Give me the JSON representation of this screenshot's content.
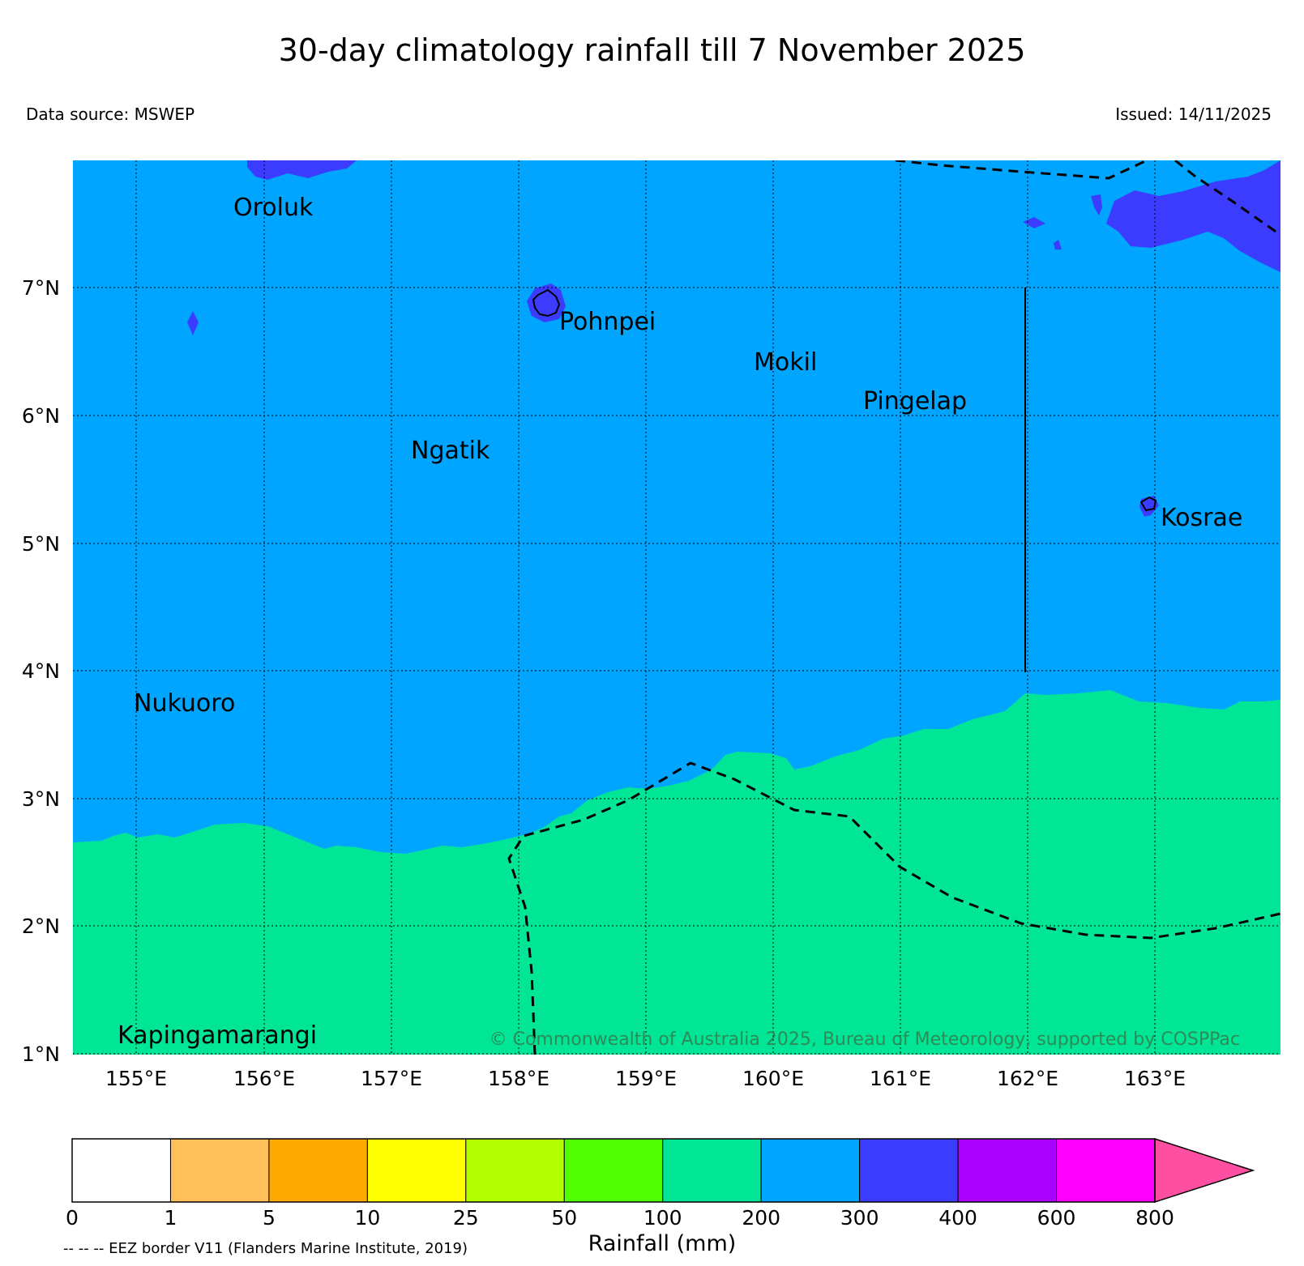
{
  "title": "30-day climatology rainfall till 7 November 2025",
  "data_source": "Data source: MSWEP",
  "issued": "Issued: 14/11/2025",
  "copyright": "© Commonwealth of Australia 2025, Bureau of Meteorology, supported by COSPPac",
  "eez_note": "-- -- -- EEZ border V11 (Flanders Marine Institute, 2019)",
  "map": {
    "lon_range": [
      154.5,
      164.0
    ],
    "lat_range": [
      1.0,
      8.0
    ],
    "lat_ticks": [
      "1°N",
      "2°N",
      "3°N",
      "4°N",
      "5°N",
      "6°N",
      "7°N"
    ],
    "lon_ticks": [
      "155°E",
      "156°E",
      "157°E",
      "158°E",
      "159°E",
      "160°E",
      "161°E",
      "162°E",
      "163°E"
    ],
    "places": [
      {
        "name": "Oroluk",
        "lon": 155.7,
        "lat": 7.7
      },
      {
        "name": "Pohnpei",
        "lon": 158.3,
        "lat": 6.8
      },
      {
        "name": "Mokil",
        "lon": 159.85,
        "lat": 6.55
      },
      {
        "name": "Pingelap",
        "lon": 160.7,
        "lat": 6.22
      },
      {
        "name": "Ngatik",
        "lon": 157.15,
        "lat": 5.85
      },
      {
        "name": "Kosrae",
        "lon": 163.0,
        "lat": 5.3
      },
      {
        "name": "Nukuoro",
        "lon": 154.95,
        "lat": 3.85
      },
      {
        "name": "Kapingamarangi",
        "lon": 154.85,
        "lat": 1.22
      }
    ]
  },
  "colorbar": {
    "label": "Rainfall (mm)",
    "ticks": [
      "0",
      "1",
      "5",
      "10",
      "25",
      "50",
      "100",
      "200",
      "300",
      "400",
      "600",
      "800"
    ],
    "colors": [
      "#ffffff",
      "#ffbf5a",
      "#ffaa00",
      "#ffff00",
      "#b4ff00",
      "#50ff00",
      "#00e696",
      "#00a5ff",
      "#3c3cff",
      "#aa00ff",
      "#ff00ff",
      "#ff4fa3"
    ]
  }
}
